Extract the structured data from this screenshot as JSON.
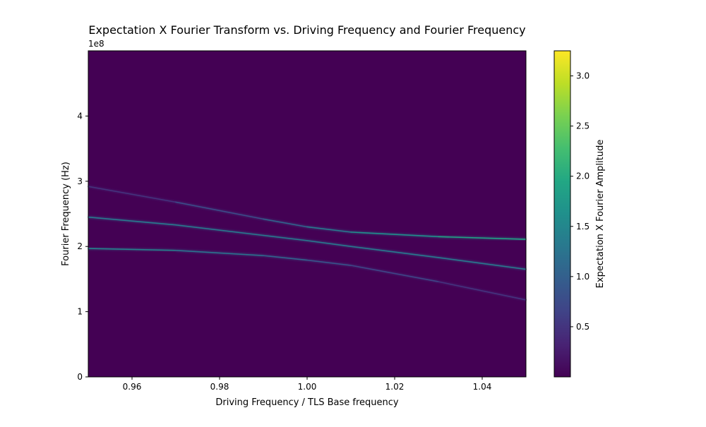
{
  "chart_data": {
    "type": "heatmap",
    "title": "Expectation X Fourier Transform vs. Driving Frequency and Fourier Frequency",
    "xlabel": "Driving Frequency / TLS Base frequency",
    "ylabel": "Fourier Frequency (Hz)",
    "y_offset_label": "1e8",
    "xlim": [
      0.95,
      1.05
    ],
    "ylim": [
      0,
      500000000
    ],
    "x_ticks": [
      0.96,
      0.98,
      1.0,
      1.02,
      1.04
    ],
    "x_tick_labels": [
      "0.96",
      "0.98",
      "1.00",
      "1.02",
      "1.04"
    ],
    "y_ticks": [
      0,
      100000000,
      200000000,
      300000000,
      400000000
    ],
    "y_tick_labels": [
      "0",
      "1",
      "2",
      "3",
      "4"
    ],
    "colorbar": {
      "label": "Expectation X Fourier Amplitude",
      "range": [
        0.0,
        3.25
      ],
      "ticks": [
        0.5,
        1.0,
        1.5,
        2.0,
        2.5,
        3.0
      ],
      "tick_labels": [
        "0.5",
        "1.0",
        "1.5",
        "2.0",
        "2.5",
        "3.0"
      ],
      "colormap": "viridis"
    },
    "grid": false,
    "background_value": 0.0,
    "series": [
      {
        "x": [
          0.95,
          0.97,
          0.99,
          1.0,
          1.01,
          1.03,
          1.05
        ],
        "y": [
          245000000,
          233000000,
          217000000,
          209000000,
          200000000,
          183000000,
          165000000
        ],
        "amplitude": 1.3
      },
      {
        "x": [
          0.95,
          0.97,
          0.99,
          1.0,
          1.01,
          1.03,
          1.05
        ],
        "y": [
          197000000,
          194000000,
          186000000,
          179000000,
          171000000,
          146000000,
          118000000
        ],
        "amplitude_start": 1.5,
        "amplitude_end": 0.4
      },
      {
        "x": [
          0.95,
          0.97,
          0.99,
          1.0,
          1.01,
          1.03,
          1.05
        ],
        "y": [
          292000000,
          268000000,
          242000000,
          230000000,
          222000000,
          215000000,
          211000000
        ],
        "amplitude_start": 0.35,
        "amplitude_end": 2.0
      }
    ]
  }
}
